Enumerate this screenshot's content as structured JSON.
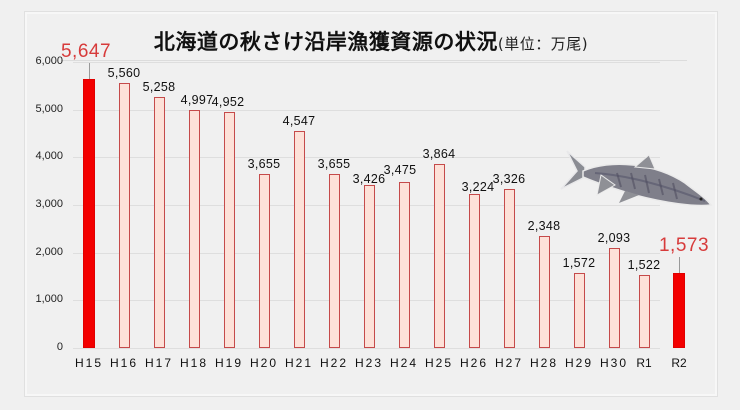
{
  "title": {
    "main": "北海道の秋さけ沿岸漁獲資源の状況",
    "unit": "(単位：万尾)"
  },
  "colors": {
    "highlight_bar": "#f30000",
    "normal_bar_fill": "#fde1d8",
    "normal_bar_border": "#c54a4a",
    "highlight_label": "#d73b3b"
  },
  "decoration": {
    "image": "salmon-fish-illustration"
  },
  "chart_data": {
    "type": "bar",
    "title": "北海道の秋さけ沿岸漁獲資源の状況(単位：万尾)",
    "xlabel": "",
    "ylabel": "",
    "ylim": [
      0,
      6000
    ],
    "yticks": [
      "0",
      "1,000",
      "2,000",
      "3,000",
      "4,000",
      "5,000",
      "6,000"
    ],
    "grid": true,
    "categories": [
      "H15",
      "H16",
      "H17",
      "H18",
      "H19",
      "H20",
      "H21",
      "H22",
      "H23",
      "H24",
      "H25",
      "H26",
      "H27",
      "H28",
      "H29",
      "H30",
      "R1",
      "R2"
    ],
    "values": [
      5647,
      5560,
      5258,
      4997,
      4952,
      3655,
      4547,
      3655,
      3426,
      3475,
      3864,
      3224,
      3326,
      2348,
      1572,
      2093,
      1522,
      1573
    ],
    "labels": [
      "5,647",
      "5,560",
      "5,258",
      "4,997",
      "4,952",
      "3,655",
      "4,547",
      "3,655",
      "3,426",
      "3,475",
      "3,864",
      "3,224",
      "3,326",
      "2,348",
      "1,572",
      "2,093",
      "1,522",
      "1,573"
    ],
    "highlighted": [
      "H15",
      "R2"
    ]
  }
}
